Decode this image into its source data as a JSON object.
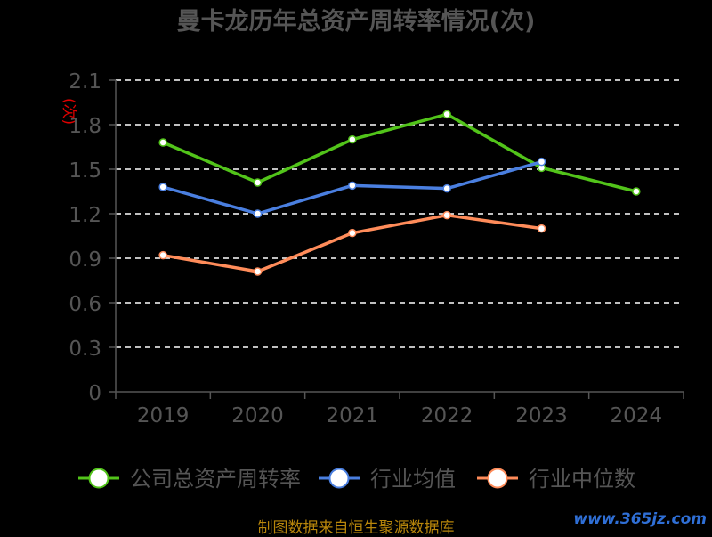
{
  "chart_data": {
    "type": "line",
    "title": "曼卡龙历年总资产周转率情况(次)",
    "ylabel": "(次)",
    "categories": [
      "2019",
      "2020",
      "2021",
      "2022",
      "2023",
      "2024"
    ],
    "ylim": [
      0,
      2.1
    ],
    "yticks": [
      "0",
      "0.3",
      "0.6",
      "0.9",
      "1.2",
      "1.5",
      "1.8",
      "2.1"
    ],
    "grid": true,
    "legend_position": "bottom",
    "series": [
      {
        "name": "公司总资产周转率",
        "color": "#52c41a",
        "values": [
          1.68,
          1.41,
          1.7,
          1.87,
          1.51,
          1.35
        ]
      },
      {
        "name": "行业均值",
        "color": "#4a7fe0",
        "values": [
          1.38,
          1.2,
          1.39,
          1.37,
          1.55,
          null
        ]
      },
      {
        "name": "行业中位数",
        "color": "#ff8c5a",
        "values": [
          0.92,
          0.81,
          1.07,
          1.19,
          1.1,
          null
        ]
      }
    ]
  },
  "footer": {
    "source": "制图数据来自恒生聚源数据库",
    "watermark": "www.365jz.com"
  },
  "colors": {
    "background": "#000000",
    "title": "#555555",
    "axis_text": "#555555",
    "ylabel": "#e00000",
    "grid": "#ffffff"
  }
}
